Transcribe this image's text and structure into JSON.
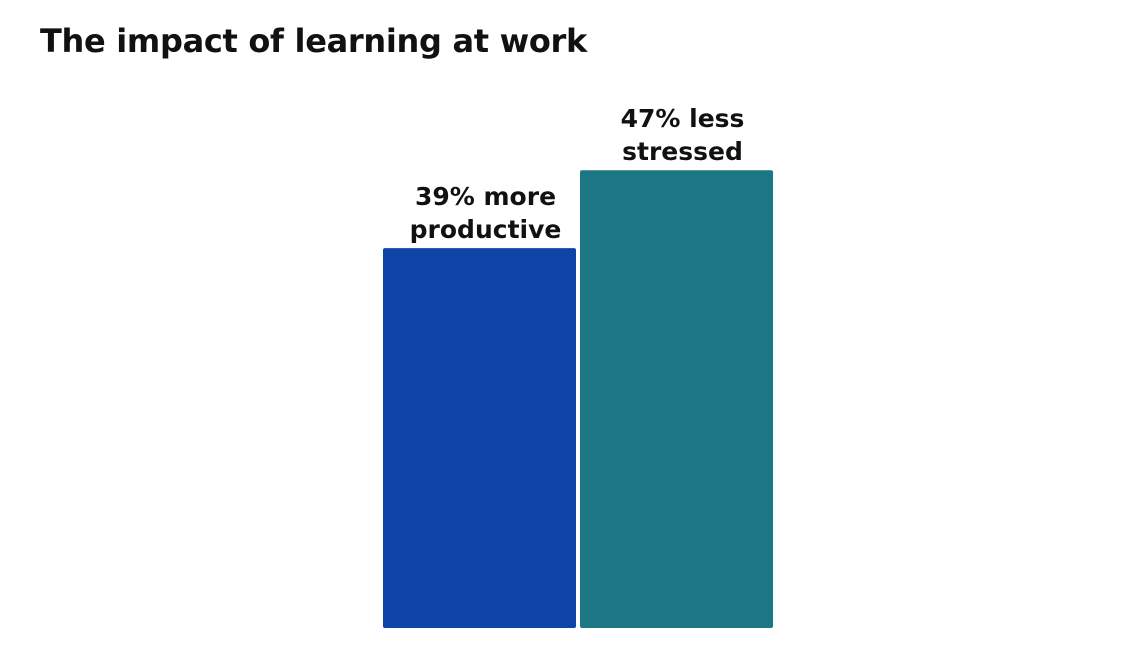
{
  "chart_data": {
    "type": "bar",
    "title": "The impact of learning at work",
    "categories": [
      "39% more productive",
      "47% less stressed"
    ],
    "values": [
      39,
      47
    ],
    "labels": [
      [
        "39% more",
        "productive"
      ],
      [
        "47% less",
        "stressed"
      ]
    ],
    "colors": [
      "#0e44a6",
      "#1b7783"
    ],
    "xlabel": "",
    "ylabel": "",
    "ylim": [
      0,
      100
    ],
    "grid": false
  }
}
